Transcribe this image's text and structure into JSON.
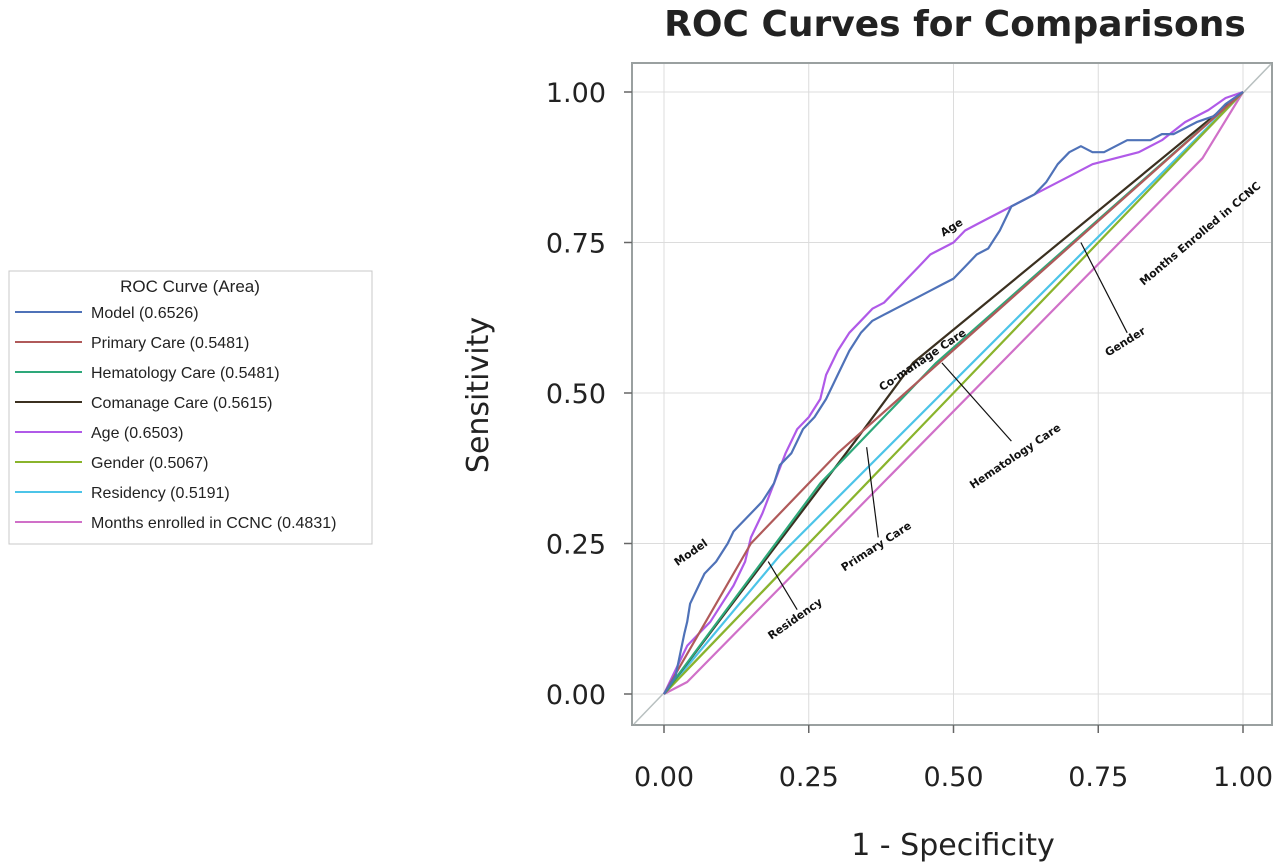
{
  "chart_data": {
    "type": "line",
    "title": "ROC Curves for Comparisons",
    "xlabel": "1 - Specificity",
    "ylabel": "Sensitivity",
    "xlim": [
      0,
      1
    ],
    "ylim": [
      0,
      1
    ],
    "x_ticks": [
      "0.00",
      "0.25",
      "0.50",
      "0.75",
      "1.00"
    ],
    "y_ticks": [
      "0.00",
      "0.25",
      "0.50",
      "0.75",
      "1.00"
    ],
    "grid": true,
    "legend": {
      "title": "ROC Curve (Area)",
      "placement": "left"
    },
    "series": [
      {
        "name": "Model (0.6526)",
        "color": "#4f72b8",
        "x": [
          0,
          0.02,
          0.035,
          0.04,
          0.045,
          0.06,
          0.07,
          0.09,
          0.11,
          0.12,
          0.13,
          0.15,
          0.17,
          0.19,
          0.2,
          0.22,
          0.24,
          0.26,
          0.28,
          0.3,
          0.32,
          0.34,
          0.36,
          0.38,
          0.4,
          0.42,
          0.44,
          0.46,
          0.48,
          0.5,
          0.52,
          0.54,
          0.56,
          0.58,
          0.6,
          0.62,
          0.64,
          0.66,
          0.68,
          0.7,
          0.72,
          0.74,
          0.76,
          0.78,
          0.8,
          0.82,
          0.84,
          0.86,
          0.88,
          0.9,
          0.92,
          0.95,
          0.97,
          1
        ],
        "y": [
          0,
          0.03,
          0.1,
          0.12,
          0.15,
          0.18,
          0.2,
          0.22,
          0.25,
          0.27,
          0.28,
          0.3,
          0.32,
          0.35,
          0.38,
          0.4,
          0.44,
          0.46,
          0.49,
          0.53,
          0.57,
          0.6,
          0.62,
          0.63,
          0.64,
          0.65,
          0.66,
          0.67,
          0.68,
          0.69,
          0.71,
          0.73,
          0.74,
          0.77,
          0.81,
          0.82,
          0.83,
          0.85,
          0.88,
          0.9,
          0.91,
          0.9,
          0.9,
          0.91,
          0.92,
          0.92,
          0.92,
          0.93,
          0.93,
          0.94,
          0.95,
          0.96,
          0.98,
          1
        ]
      },
      {
        "name": "Primary Care (0.5481)",
        "color": "#b05a5a",
        "x": [
          0,
          0.15,
          0.3,
          1
        ],
        "y": [
          0,
          0.25,
          0.4,
          1
        ]
      },
      {
        "name": "Hematology Care (0.5481)",
        "color": "#2ea87a",
        "x": [
          0,
          0.27,
          0.47,
          1
        ],
        "y": [
          0,
          0.35,
          0.55,
          1
        ]
      },
      {
        "name": "Comanage Care (0.5615)",
        "color": "#3b3020",
        "x": [
          0,
          0.33,
          0.43,
          1
        ],
        "y": [
          0,
          0.42,
          0.55,
          1
        ]
      },
      {
        "name": "Age (0.6503)",
        "color": "#b05ae8",
        "x": [
          0,
          0.02,
          0.04,
          0.06,
          0.08,
          0.1,
          0.12,
          0.14,
          0.15,
          0.17,
          0.19,
          0.21,
          0.23,
          0.25,
          0.27,
          0.28,
          0.3,
          0.32,
          0.34,
          0.36,
          0.38,
          0.4,
          0.42,
          0.44,
          0.46,
          0.48,
          0.5,
          0.52,
          0.54,
          0.56,
          0.58,
          0.6,
          0.62,
          0.64,
          0.66,
          0.68,
          0.7,
          0.74,
          0.78,
          0.82,
          0.86,
          0.9,
          0.94,
          0.97,
          1
        ],
        "y": [
          0,
          0.04,
          0.08,
          0.1,
          0.12,
          0.15,
          0.18,
          0.22,
          0.26,
          0.3,
          0.35,
          0.4,
          0.44,
          0.46,
          0.49,
          0.53,
          0.57,
          0.6,
          0.62,
          0.64,
          0.65,
          0.67,
          0.69,
          0.71,
          0.73,
          0.74,
          0.75,
          0.77,
          0.78,
          0.79,
          0.8,
          0.81,
          0.82,
          0.83,
          0.84,
          0.85,
          0.86,
          0.88,
          0.89,
          0.9,
          0.92,
          0.95,
          0.97,
          0.99,
          1
        ]
      },
      {
        "name": "Gender (0.5067)",
        "color": "#8ab42c",
        "x": [
          0,
          1
        ],
        "y": [
          0,
          1
        ]
      },
      {
        "name": "Residency (0.5191)",
        "color": "#4cc4e8",
        "x": [
          0,
          0.2,
          1
        ],
        "y": [
          0,
          0.23,
          1
        ]
      },
      {
        "name": "Months enrolled in CCNC (0.4831)",
        "color": "#d070c8",
        "x": [
          0,
          0.04,
          0.93,
          1
        ],
        "y": [
          0,
          0.02,
          0.89,
          1
        ]
      }
    ],
    "annotations": [
      {
        "text": "Model",
        "x": 0.05,
        "y": 0.23,
        "angle": -35
      },
      {
        "text": "Primary Care",
        "x": 0.37,
        "y": 0.24,
        "angle": -33
      },
      {
        "text": "Residency",
        "x": 0.23,
        "y": 0.12,
        "angle": -35
      },
      {
        "text": "Age",
        "x": 0.5,
        "y": 0.77,
        "angle": -32
      },
      {
        "text": "Co-manage Care",
        "x": 0.45,
        "y": 0.55,
        "angle": -34
      },
      {
        "text": "Hematology Care",
        "x": 0.61,
        "y": 0.39,
        "angle": -34
      },
      {
        "text": "Gender",
        "x": 0.8,
        "y": 0.58,
        "angle": -32
      },
      {
        "text": "Months Enrolled in CCNC",
        "x": 0.93,
        "y": 0.76,
        "angle": -40
      }
    ]
  }
}
